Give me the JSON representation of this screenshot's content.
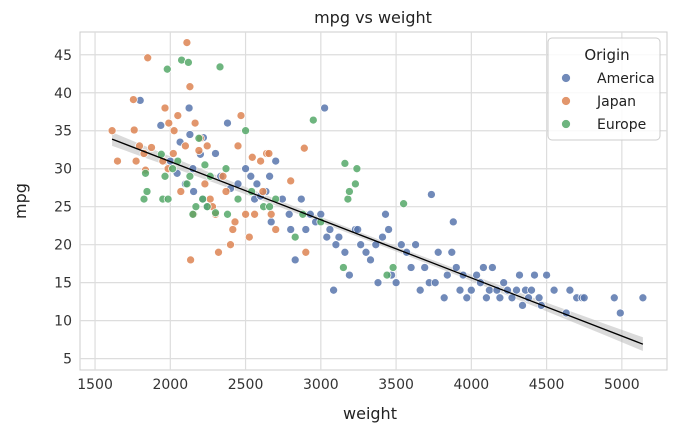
{
  "chart_data": {
    "type": "scatter",
    "title": "mpg vs weight",
    "xlabel": "weight",
    "ylabel": "mpg",
    "xlim": [
      1400,
      5300
    ],
    "ylim": [
      3.5,
      48
    ],
    "xticks": [
      1500,
      2000,
      2500,
      3000,
      3500,
      4000,
      4500,
      5000
    ],
    "yticks": [
      5,
      10,
      15,
      20,
      25,
      30,
      35,
      40,
      45
    ],
    "grid": true,
    "legend": {
      "title": "Origin",
      "placement": "top-right"
    },
    "regression": {
      "x": [
        1613,
        5140
      ],
      "y": [
        33.9,
        6.9
      ],
      "color": "#000000",
      "band_color": "#bbbbbb"
    },
    "series": [
      {
        "name": "America",
        "color": "#5875ad",
        "points": [
          [
            1800,
            39
          ],
          [
            1937,
            35.7
          ],
          [
            2000,
            31
          ],
          [
            2045,
            29.4
          ],
          [
            2065,
            33.5
          ],
          [
            2100,
            28
          ],
          [
            2125,
            38
          ],
          [
            2130,
            34.5
          ],
          [
            2150,
            30
          ],
          [
            2155,
            27
          ],
          [
            2200,
            31.9
          ],
          [
            2215,
            26
          ],
          [
            2220,
            34.1
          ],
          [
            2245,
            25
          ],
          [
            2300,
            32
          ],
          [
            2335,
            29
          ],
          [
            2380,
            36
          ],
          [
            2400,
            27.4
          ],
          [
            2450,
            28
          ],
          [
            2500,
            30
          ],
          [
            2535,
            29
          ],
          [
            2560,
            26
          ],
          [
            2575,
            28
          ],
          [
            2600,
            26.4
          ],
          [
            2635,
            27
          ],
          [
            2660,
            29
          ],
          [
            2670,
            23
          ],
          [
            2700,
            31
          ],
          [
            2745,
            26
          ],
          [
            2790,
            24
          ],
          [
            2800,
            22
          ],
          [
            2830,
            18
          ],
          [
            2870,
            26
          ],
          [
            2900,
            22
          ],
          [
            2930,
            24
          ],
          [
            2965,
            23
          ],
          [
            3000,
            24
          ],
          [
            3025,
            38
          ],
          [
            3040,
            21
          ],
          [
            3060,
            22
          ],
          [
            3085,
            14
          ],
          [
            3100,
            20
          ],
          [
            3120,
            21
          ],
          [
            3160,
            19
          ],
          [
            3190,
            16
          ],
          [
            3230,
            22
          ],
          [
            3245,
            22
          ],
          [
            3265,
            20
          ],
          [
            3300,
            19
          ],
          [
            3330,
            18
          ],
          [
            3365,
            20
          ],
          [
            3380,
            15
          ],
          [
            3410,
            21
          ],
          [
            3430,
            24
          ],
          [
            3450,
            22
          ],
          [
            3470,
            16
          ],
          [
            3500,
            15
          ],
          [
            3535,
            20
          ],
          [
            3570,
            19
          ],
          [
            3600,
            17
          ],
          [
            3630,
            20
          ],
          [
            3660,
            14
          ],
          [
            3690,
            17
          ],
          [
            3720,
            15
          ],
          [
            3735,
            26.6
          ],
          [
            3760,
            15
          ],
          [
            3780,
            19
          ],
          [
            3820,
            13
          ],
          [
            3840,
            16
          ],
          [
            3870,
            19
          ],
          [
            3880,
            23
          ],
          [
            3900,
            17
          ],
          [
            3925,
            14
          ],
          [
            3945,
            16
          ],
          [
            3970,
            13
          ],
          [
            4000,
            14
          ],
          [
            4035,
            16
          ],
          [
            4060,
            15
          ],
          [
            4080,
            17
          ],
          [
            4100,
            13
          ],
          [
            4120,
            14
          ],
          [
            4140,
            17
          ],
          [
            4170,
            14
          ],
          [
            4190,
            13
          ],
          [
            4215,
            15
          ],
          [
            4240,
            14
          ],
          [
            4270,
            13
          ],
          [
            4300,
            14
          ],
          [
            4320,
            16
          ],
          [
            4340,
            12
          ],
          [
            4360,
            14
          ],
          [
            4380,
            13
          ],
          [
            4400,
            14
          ],
          [
            4420,
            16
          ],
          [
            4450,
            13
          ],
          [
            4465,
            12
          ],
          [
            4500,
            16
          ],
          [
            4550,
            14
          ],
          [
            4630,
            11
          ],
          [
            4655,
            14
          ],
          [
            4700,
            13
          ],
          [
            4735,
            13
          ],
          [
            4750,
            13
          ],
          [
            4950,
            13
          ],
          [
            4990,
            11
          ],
          [
            5140,
            13
          ]
        ]
      },
      {
        "name": "Japan",
        "color": "#dd8452",
        "points": [
          [
            1613,
            35
          ],
          [
            1649,
            31
          ],
          [
            1755,
            39.1
          ],
          [
            1760,
            35.1
          ],
          [
            1773,
            31
          ],
          [
            1795,
            33
          ],
          [
            1825,
            32
          ],
          [
            1835,
            29.8
          ],
          [
            1850,
            44.6
          ],
          [
            1875,
            32.8
          ],
          [
            1950,
            31
          ],
          [
            1965,
            38
          ],
          [
            1985,
            30
          ],
          [
            1990,
            36
          ],
          [
            2020,
            32
          ],
          [
            2025,
            35
          ],
          [
            2050,
            37
          ],
          [
            2070,
            27
          ],
          [
            2100,
            33
          ],
          [
            2110,
            46.6
          ],
          [
            2130,
            40.8
          ],
          [
            2135,
            18
          ],
          [
            2155,
            24
          ],
          [
            2165,
            36
          ],
          [
            2190,
            32.4
          ],
          [
            2200,
            34
          ],
          [
            2230,
            28
          ],
          [
            2245,
            33
          ],
          [
            2265,
            26
          ],
          [
            2280,
            25
          ],
          [
            2300,
            24
          ],
          [
            2320,
            19
          ],
          [
            2350,
            29
          ],
          [
            2370,
            27
          ],
          [
            2400,
            20
          ],
          [
            2415,
            22
          ],
          [
            2430,
            23
          ],
          [
            2450,
            33
          ],
          [
            2470,
            37
          ],
          [
            2500,
            24
          ],
          [
            2525,
            21
          ],
          [
            2545,
            31.5
          ],
          [
            2560,
            24
          ],
          [
            2600,
            31
          ],
          [
            2615,
            27
          ],
          [
            2640,
            32
          ],
          [
            2655,
            32
          ],
          [
            2670,
            24
          ],
          [
            2700,
            22
          ],
          [
            2800,
            28.4
          ],
          [
            2890,
            32.7
          ],
          [
            2900,
            19
          ]
        ]
      },
      {
        "name": "Europe",
        "color": "#55a868",
        "points": [
          [
            1825,
            26
          ],
          [
            1835,
            29.4
          ],
          [
            1845,
            27
          ],
          [
            1940,
            31.9
          ],
          [
            1950,
            26
          ],
          [
            1965,
            29
          ],
          [
            1980,
            43.1
          ],
          [
            1985,
            26
          ],
          [
            2015,
            30
          ],
          [
            2050,
            31
          ],
          [
            2075,
            44.3
          ],
          [
            2110,
            28
          ],
          [
            2120,
            44
          ],
          [
            2130,
            29
          ],
          [
            2150,
            24
          ],
          [
            2170,
            25
          ],
          [
            2190,
            34
          ],
          [
            2215,
            26
          ],
          [
            2230,
            30.5
          ],
          [
            2245,
            25
          ],
          [
            2265,
            29
          ],
          [
            2300,
            24.2
          ],
          [
            2330,
            43.4
          ],
          [
            2370,
            30
          ],
          [
            2380,
            24
          ],
          [
            2450,
            26
          ],
          [
            2500,
            35
          ],
          [
            2540,
            27
          ],
          [
            2620,
            25
          ],
          [
            2660,
            25
          ],
          [
            2700,
            26
          ],
          [
            2830,
            21
          ],
          [
            2880,
            24
          ],
          [
            2950,
            36.4
          ],
          [
            3000,
            23
          ],
          [
            3150,
            17
          ],
          [
            3160,
            30.7
          ],
          [
            3180,
            26
          ],
          [
            3190,
            27
          ],
          [
            3230,
            28
          ],
          [
            3240,
            30
          ],
          [
            3440,
            16
          ],
          [
            3480,
            17
          ],
          [
            3550,
            25.4
          ]
        ]
      }
    ]
  }
}
